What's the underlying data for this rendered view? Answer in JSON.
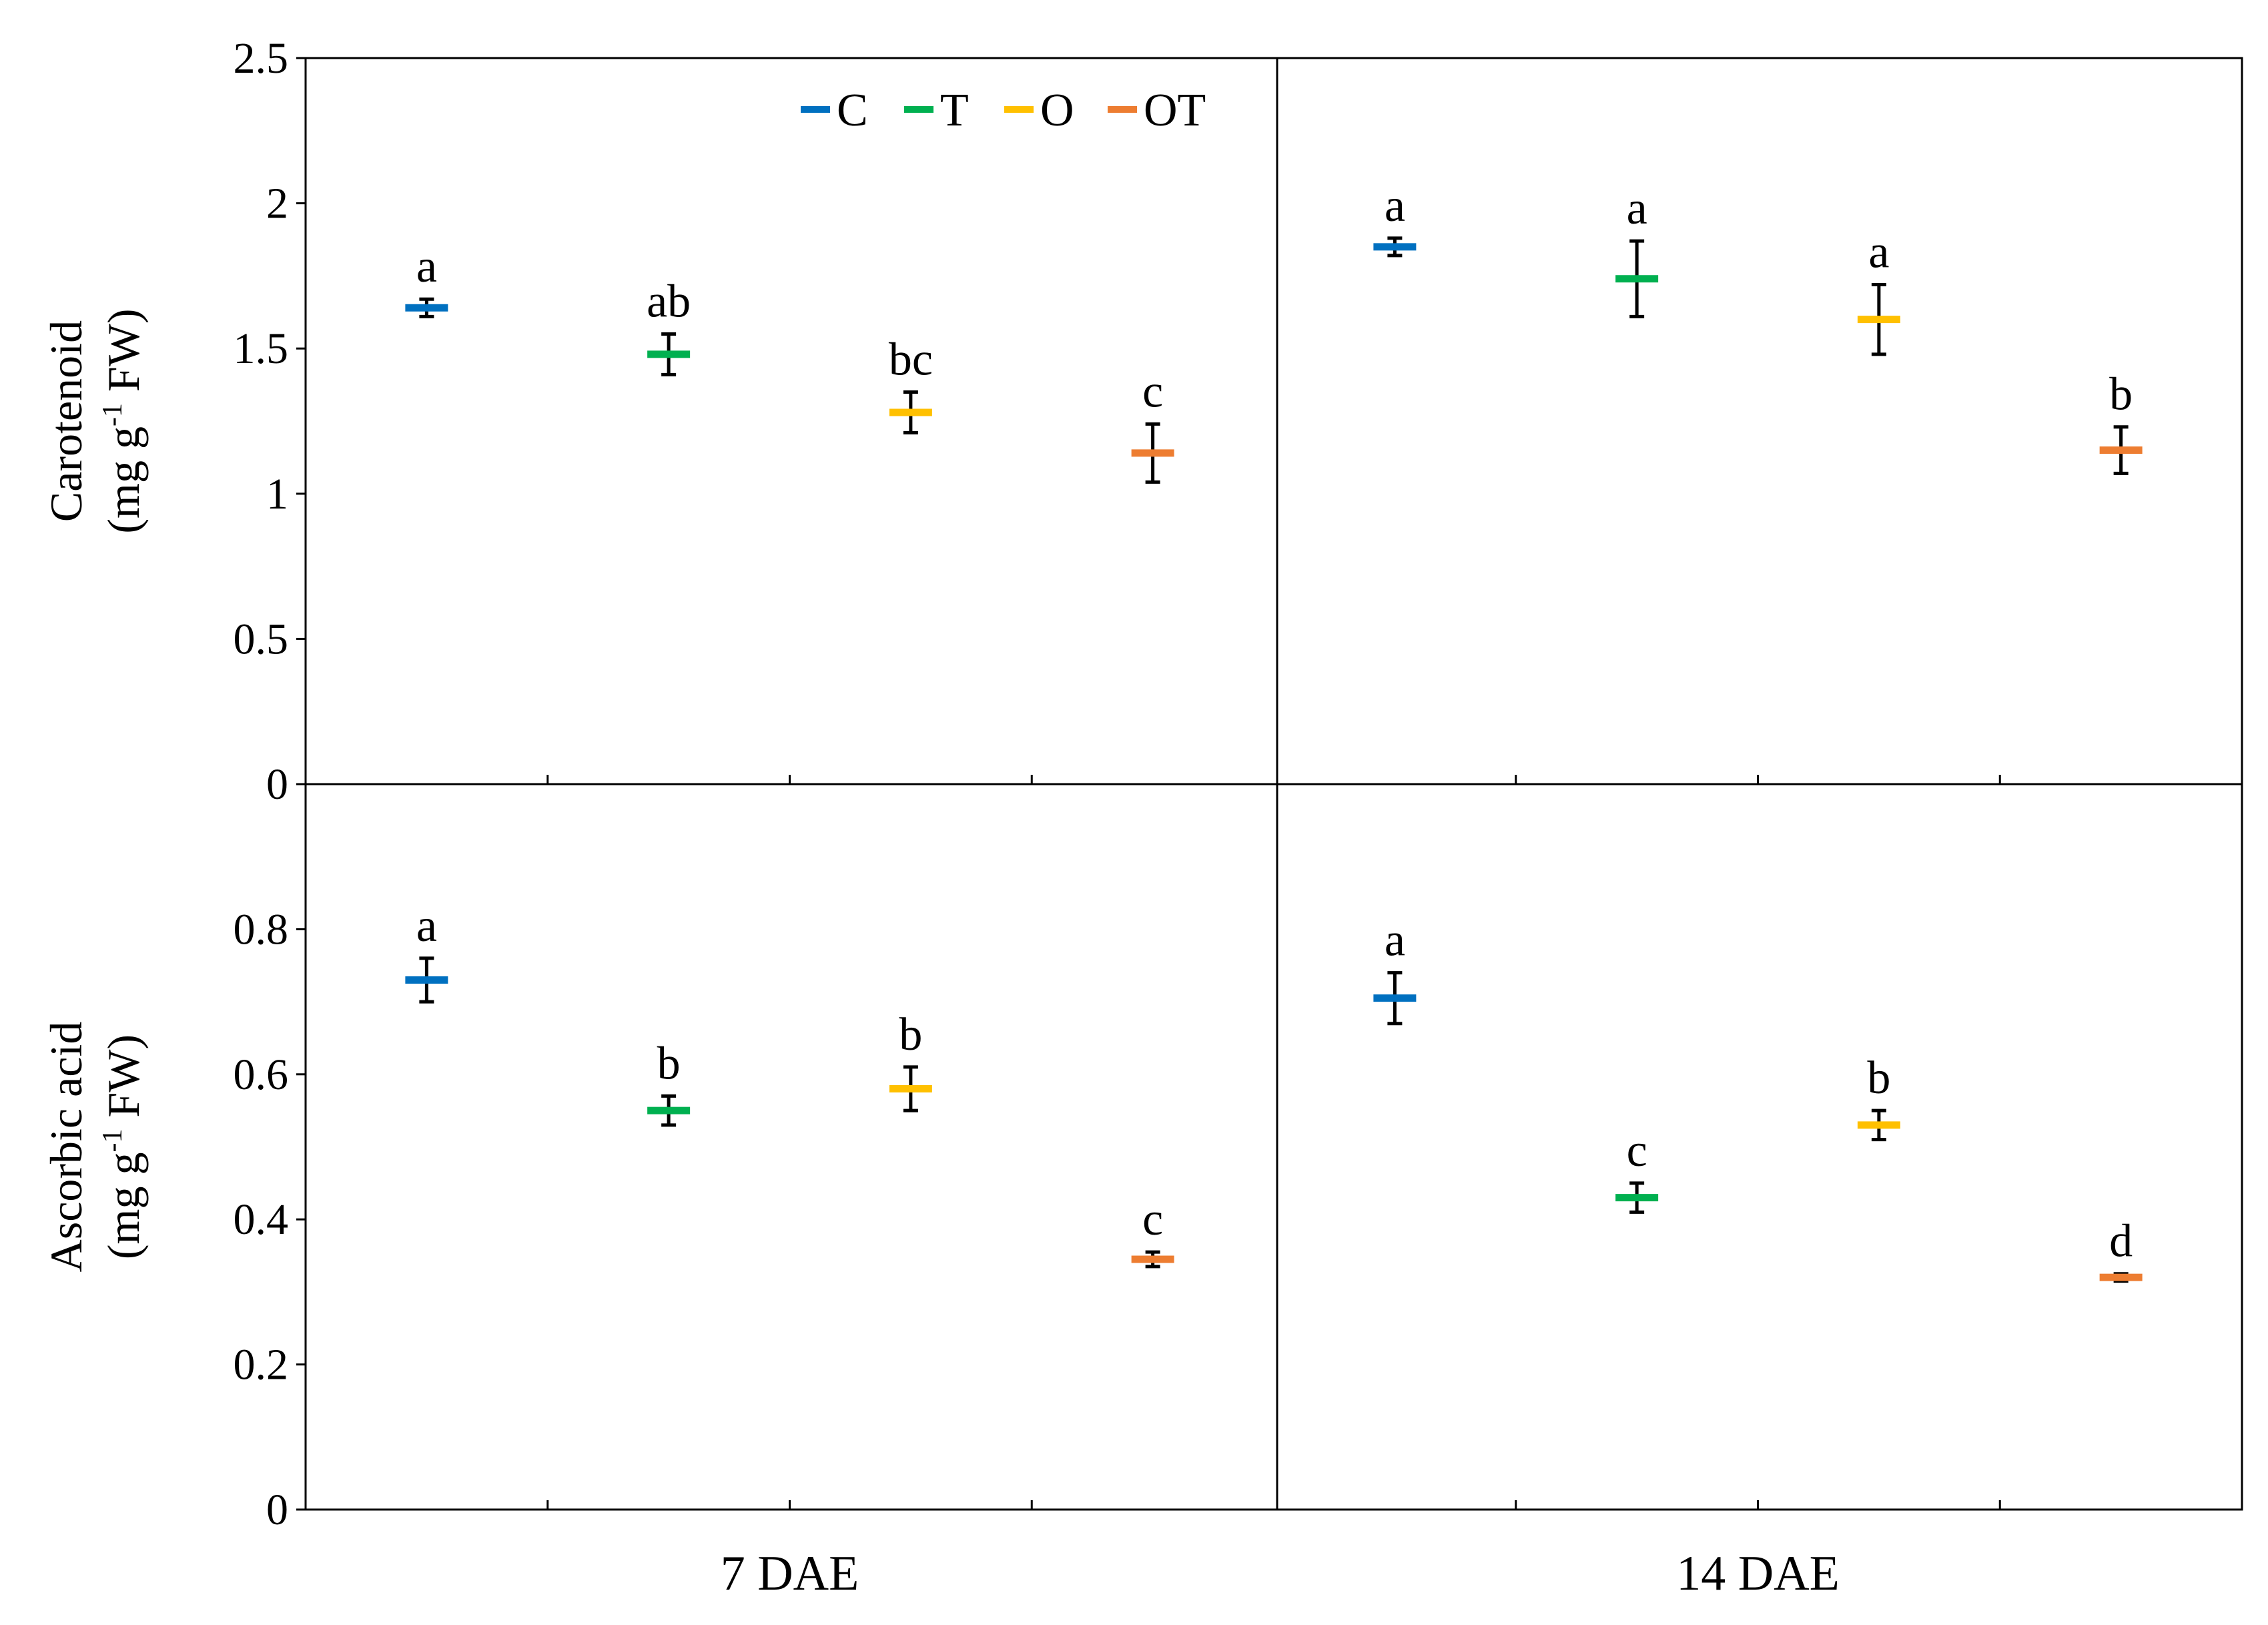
{
  "chart_data": {
    "type": "scatter",
    "categories": [
      "7 DAE",
      "14 DAE"
    ],
    "legend": {
      "placement": "top-center",
      "entries": [
        {
          "name": "C",
          "color": "#0070C0"
        },
        {
          "name": "T",
          "color": "#00B050"
        },
        {
          "name": "O",
          "color": "#FFC000"
        },
        {
          "name": "OT",
          "color": "#ED7D31"
        }
      ]
    },
    "panels": [
      {
        "id": "carotenoid",
        "ylabel_line1": "Carotenoid",
        "ylabel_line2_prefix": "(mg g",
        "ylabel_line2_sup": "-1",
        "ylabel_line2_suffix": " FW)",
        "ylim": [
          0,
          2.5
        ],
        "yticks": [
          "0",
          "0.5",
          "1",
          "1.5",
          "2",
          "2.5"
        ],
        "yticks_values": [
          0,
          0.5,
          1,
          1.5,
          2,
          2.5
        ],
        "groups": [
          {
            "category": "7 DAE",
            "points": [
              {
                "series": "C",
                "value": 1.64,
                "error": 0.03,
                "label": "a"
              },
              {
                "series": "T",
                "value": 1.48,
                "error": 0.07,
                "label": "ab"
              },
              {
                "series": "O",
                "value": 1.28,
                "error": 0.07,
                "label": "bc"
              },
              {
                "series": "OT",
                "value": 1.14,
                "error": 0.1,
                "label": "c"
              }
            ]
          },
          {
            "category": "14 DAE",
            "points": [
              {
                "series": "C",
                "value": 1.85,
                "error": 0.03,
                "label": "a"
              },
              {
                "series": "T",
                "value": 1.74,
                "error": 0.13,
                "label": "a"
              },
              {
                "series": "O",
                "value": 1.6,
                "error": 0.12,
                "label": "a"
              },
              {
                "series": "OT",
                "value": 1.15,
                "error": 0.08,
                "label": "b"
              }
            ]
          }
        ]
      },
      {
        "id": "ascorbic",
        "ylabel_line1": "Ascorbic acid",
        "ylabel_line2_prefix": "(mg g",
        "ylabel_line2_sup": "-1",
        "ylabel_line2_suffix": " FW)",
        "ylim": [
          0,
          1.0
        ],
        "yticks": [
          "0",
          "0.2",
          "0.4",
          "0.6",
          "0.8"
        ],
        "yticks_values": [
          0,
          0.2,
          0.4,
          0.6,
          0.8
        ],
        "groups": [
          {
            "category": "7 DAE",
            "points": [
              {
                "series": "C",
                "value": 0.73,
                "error": 0.03,
                "label": "a"
              },
              {
                "series": "T",
                "value": 0.55,
                "error": 0.02,
                "label": "b"
              },
              {
                "series": "O",
                "value": 0.58,
                "error": 0.03,
                "label": "b"
              },
              {
                "series": "OT",
                "value": 0.345,
                "error": 0.01,
                "label": "c"
              }
            ]
          },
          {
            "category": "14 DAE",
            "points": [
              {
                "series": "C",
                "value": 0.705,
                "error": 0.035,
                "label": "a"
              },
              {
                "series": "T",
                "value": 0.43,
                "error": 0.02,
                "label": "c"
              },
              {
                "series": "O",
                "value": 0.53,
                "error": 0.02,
                "label": "b"
              },
              {
                "series": "OT",
                "value": 0.32,
                "error": 0.005,
                "label": "d"
              }
            ]
          }
        ]
      }
    ]
  }
}
